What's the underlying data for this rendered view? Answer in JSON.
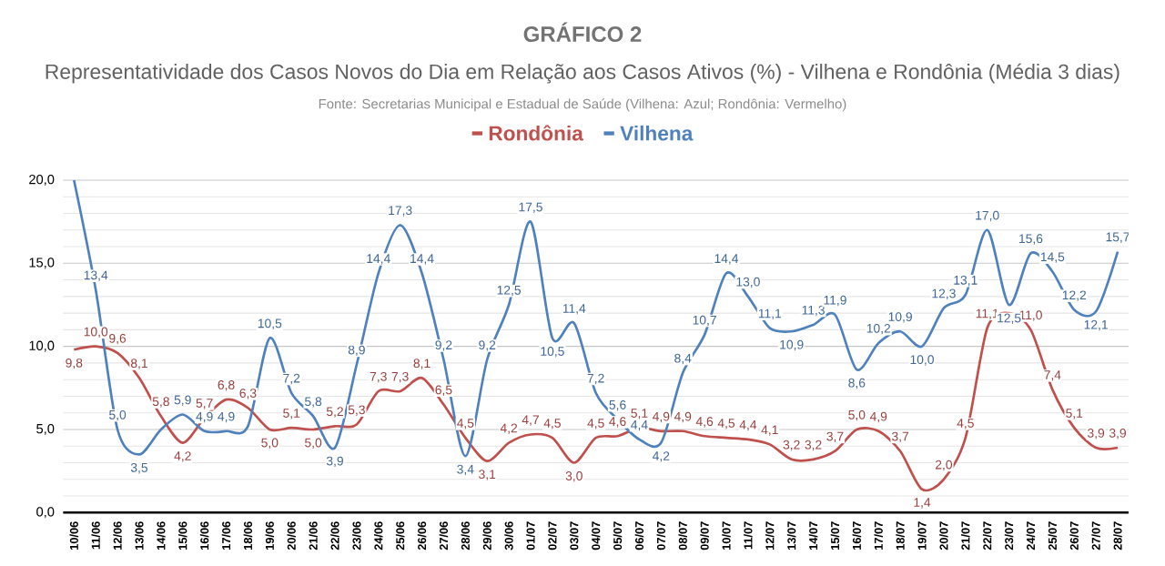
{
  "chart_data": {
    "type": "line",
    "title": "GRÁFICO 2",
    "subtitle": "Representatividade dos Casos Novos do Dia em Relação aos Casos Ativos (%) - Vilhena e Rondônia (Média 3 dias)",
    "annotations": [
      "Fonte: Secretarias Municipal e Estadual de Saúde (Vilhena: Azul; Rondônia: Vermelho)"
    ],
    "categories": [
      "10/06",
      "11/06",
      "12/06",
      "13/06",
      "14/06",
      "15/06",
      "16/06",
      "17/06",
      "18/06",
      "19/06",
      "20/06",
      "21/06",
      "22/06",
      "23/06",
      "24/06",
      "25/06",
      "26/06",
      "27/06",
      "28/06",
      "29/06",
      "30/06",
      "01/07",
      "02/07",
      "03/07",
      "04/07",
      "05/07",
      "06/07",
      "07/07",
      "08/07",
      "09/07",
      "10/07",
      "11/07",
      "12/07",
      "13/07",
      "14/07",
      "15/07",
      "16/07",
      "17/07",
      "18/07",
      "19/07",
      "20/07",
      "21/07",
      "22/07",
      "23/07",
      "24/07",
      "25/07",
      "26/07",
      "27/07",
      "28/07"
    ],
    "series": [
      {
        "name": "Rondônia",
        "color": "#c0504d",
        "values": [
          9.8,
          10.0,
          9.6,
          8.1,
          5.8,
          4.2,
          5.7,
          6.8,
          6.3,
          5.0,
          5.1,
          5.0,
          5.2,
          5.3,
          7.3,
          7.3,
          8.1,
          6.5,
          4.5,
          3.1,
          4.2,
          4.7,
          4.5,
          3.0,
          4.5,
          4.6,
          5.1,
          4.9,
          4.9,
          4.6,
          4.5,
          4.4,
          4.1,
          3.2,
          3.2,
          3.7,
          5.0,
          4.9,
          3.7,
          1.4,
          2.0,
          4.5,
          11.1,
          12.0,
          11.0,
          7.4,
          5.1,
          3.9,
          3.9
        ],
        "value_labels": [
          "9,8",
          "10,0",
          "9,6",
          "8,1",
          "5,8",
          "4,2",
          "5,7",
          "6,8",
          "6,3",
          "5,0",
          "5,1",
          "5,0",
          "5,2",
          "5,3",
          "7,3",
          "7,3",
          "8,1",
          "6,5",
          "4,5",
          "3,1",
          "4,2",
          "4,7",
          "4,5",
          "3,0",
          "4,5",
          "4,6",
          "5,1",
          "4,9",
          "4,9",
          "4,6",
          "4,5",
          "4,4",
          "4,1",
          "3,2",
          "3,2",
          "3,7",
          "5,0",
          "4,9",
          "3,7",
          "1,4",
          "2,0",
          "4,5",
          "11,1",
          null,
          "11,0",
          "7,4",
          "5,1",
          "3,9",
          "3,9"
        ]
      },
      {
        "name": "Vilhena",
        "color": "#4f81bd",
        "values": [
          20.0,
          13.4,
          5.0,
          3.5,
          5.0,
          5.9,
          4.9,
          4.9,
          5.2,
          10.5,
          7.2,
          5.8,
          3.9,
          8.9,
          14.4,
          17.3,
          14.4,
          9.2,
          3.4,
          9.2,
          12.5,
          17.5,
          10.5,
          11.4,
          7.2,
          5.6,
          4.4,
          4.2,
          8.4,
          10.7,
          14.4,
          13.0,
          11.1,
          10.9,
          11.3,
          11.9,
          8.6,
          10.2,
          10.9,
          10.0,
          12.3,
          13.1,
          17.0,
          12.5,
          15.6,
          14.5,
          12.2,
          12.1,
          15.7
        ],
        "value_labels": [
          null,
          "13,4",
          "5,0",
          "3,5",
          null,
          "5,9",
          "4,9",
          "4,9",
          null,
          "10,5",
          "7,2",
          "5,8",
          "3,9",
          "8,9",
          "14,4",
          "17,3",
          "14,4",
          "9,2",
          "3,4",
          "9,2",
          "12,5",
          "17,5",
          "10,5",
          "11,4",
          "7,2",
          "5,6",
          "4,4",
          "4,2",
          "8,4",
          "10,7",
          "14,4",
          "13,0",
          "11,1",
          "10,9",
          "11,3",
          "11,9",
          "8,6",
          "10,2",
          "10,9",
          "10,0",
          "12,3",
          "13,1",
          "17,0",
          "12,5",
          "15,6",
          "14,5",
          "12,2",
          "12,1",
          "15,7"
        ]
      }
    ],
    "ylim": [
      0,
      20
    ],
    "yticks": [
      {
        "value": 0,
        "label": "0,0"
      },
      {
        "value": 5,
        "label": "5,0"
      },
      {
        "value": 10,
        "label": "10,0"
      },
      {
        "value": 15,
        "label": "15,0"
      },
      {
        "value": 20,
        "label": "20,0"
      }
    ],
    "grid": "y",
    "legend": "top",
    "marker": "none",
    "line_style": "solid"
  }
}
